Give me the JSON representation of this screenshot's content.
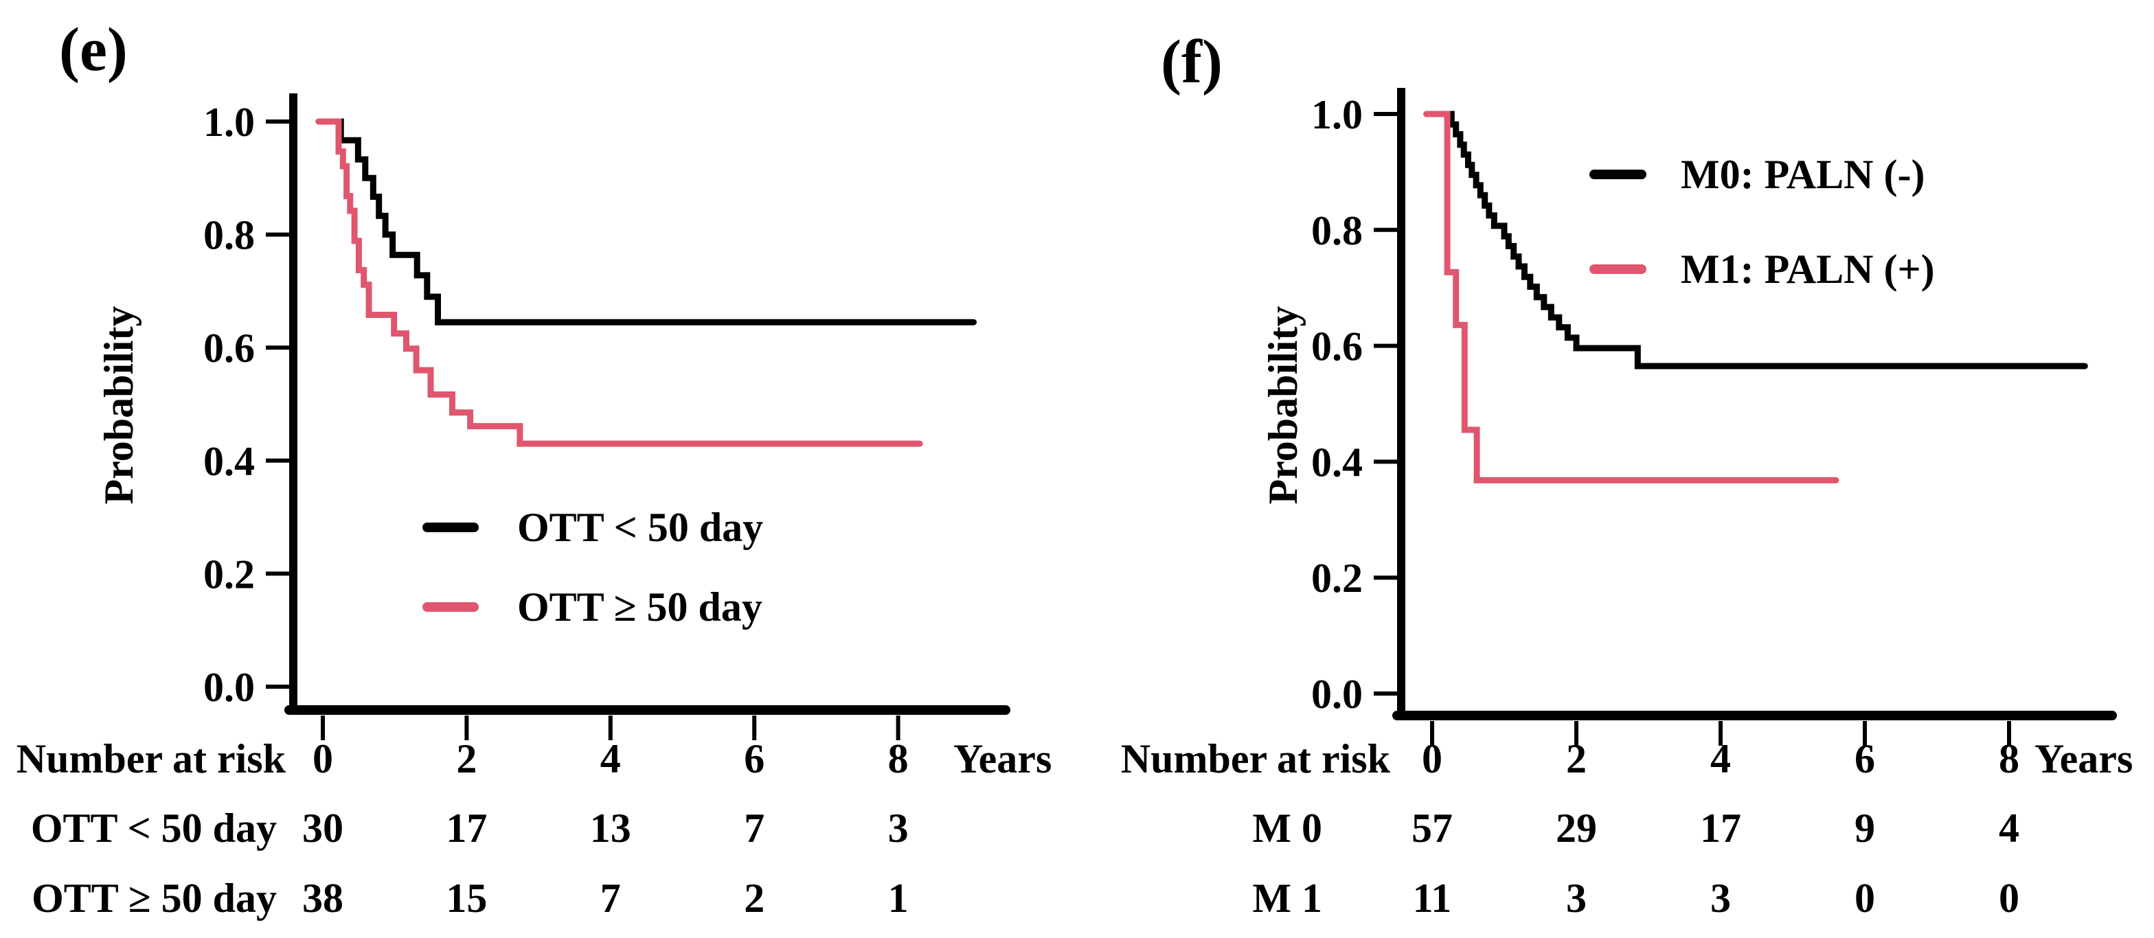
{
  "figure": {
    "background": "#ffffff",
    "accent_pink": "#E0566E",
    "accent_black": "#000000"
  },
  "chart_data": [
    {
      "type": "line",
      "panel": "e",
      "title": "(e)",
      "ylabel": "Probability",
      "xlabel": "Years",
      "x_ticks": [
        "0",
        "2",
        "4",
        "6",
        "8"
      ],
      "y_ticks": [
        "1.0",
        "0.8",
        "0.6",
        "0.4",
        "0.2",
        "0.0"
      ],
      "xlim": [
        0,
        9.5
      ],
      "ylim": [
        0.0,
        1.0
      ],
      "grid": false,
      "legend_position": "inside-lower-left",
      "series": [
        {
          "name": "OTT < 50 day",
          "color": "#000000",
          "end_year": 9.05,
          "points": [
            [
              0,
              1.0
            ],
            [
              0.25,
              0.967
            ],
            [
              0.49,
              0.933
            ],
            [
              0.59,
              0.9
            ],
            [
              0.7,
              0.867
            ],
            [
              0.78,
              0.833
            ],
            [
              0.87,
              0.8
            ],
            [
              0.97,
              0.764
            ],
            [
              1.31,
              0.728
            ],
            [
              1.45,
              0.69
            ],
            [
              1.6,
              0.645
            ]
          ]
        },
        {
          "name": "OTT ≥ 50 day",
          "color": "#E0566E",
          "end_year": 8.3,
          "points": [
            [
              -0.06,
              1.0
            ],
            [
              0.22,
              0.947
            ],
            [
              0.28,
              0.921
            ],
            [
              0.33,
              0.868
            ],
            [
              0.38,
              0.842
            ],
            [
              0.44,
              0.789
            ],
            [
              0.5,
              0.737
            ],
            [
              0.57,
              0.711
            ],
            [
              0.64,
              0.658
            ],
            [
              0.99,
              0.625
            ],
            [
              1.16,
              0.598
            ],
            [
              1.3,
              0.56
            ],
            [
              1.5,
              0.517
            ],
            [
              1.8,
              0.485
            ],
            [
              2.05,
              0.461
            ],
            [
              2.74,
              0.43
            ]
          ]
        }
      ],
      "risk_table": {
        "header": "Number at risk",
        "rows": [
          {
            "label": "OTT < 50 day",
            "counts": [
              "30",
              "17",
              "13",
              "7",
              "3"
            ]
          },
          {
            "label": "OTT ≥ 50 day",
            "counts": [
              "38",
              "15",
              "7",
              "2",
              "1"
            ]
          }
        ]
      }
    },
    {
      "type": "line",
      "panel": "f",
      "title": "(f)",
      "ylabel": "Probability",
      "xlabel": "Years",
      "x_ticks": [
        "0",
        "2",
        "4",
        "6",
        "8"
      ],
      "y_ticks": [
        "1.0",
        "0.8",
        "0.6",
        "0.4",
        "0.2",
        "0.0"
      ],
      "xlim": [
        0,
        9.5
      ],
      "ylim": [
        0.0,
        1.0
      ],
      "grid": false,
      "legend_position": "inside-upper-right",
      "series": [
        {
          "name": "M0: PALN (-)",
          "color": "#000000",
          "end_year": 9.05,
          "points": [
            [
              0,
              1.0
            ],
            [
              0.27,
              0.982
            ],
            [
              0.33,
              0.965
            ],
            [
              0.39,
              0.947
            ],
            [
              0.44,
              0.93
            ],
            [
              0.5,
              0.912
            ],
            [
              0.55,
              0.895
            ],
            [
              0.61,
              0.877
            ],
            [
              0.67,
              0.86
            ],
            [
              0.73,
              0.842
            ],
            [
              0.79,
              0.825
            ],
            [
              0.86,
              0.807
            ],
            [
              1.0,
              0.789
            ],
            [
              1.06,
              0.772
            ],
            [
              1.13,
              0.754
            ],
            [
              1.2,
              0.737
            ],
            [
              1.28,
              0.719
            ],
            [
              1.36,
              0.702
            ],
            [
              1.45,
              0.684
            ],
            [
              1.55,
              0.667
            ],
            [
              1.65,
              0.649
            ],
            [
              1.76,
              0.632
            ],
            [
              1.88,
              0.614
            ],
            [
              2.0,
              0.596
            ],
            [
              2.85,
              0.565
            ]
          ]
        },
        {
          "name": "M1: PALN (+)",
          "color": "#E0566E",
          "end_year": 5.6,
          "points": [
            [
              -0.08,
              1.0
            ],
            [
              0.21,
              0.727
            ],
            [
              0.33,
              0.636
            ],
            [
              0.45,
              0.455
            ],
            [
              0.62,
              0.368
            ]
          ]
        }
      ],
      "risk_table": {
        "header": "Number at risk",
        "rows": [
          {
            "label": "M 0",
            "counts": [
              "57",
              "29",
              "17",
              "9",
              "4"
            ]
          },
          {
            "label": "M 1",
            "counts": [
              "11",
              "3",
              "3",
              "0",
              "0"
            ]
          }
        ]
      }
    }
  ]
}
